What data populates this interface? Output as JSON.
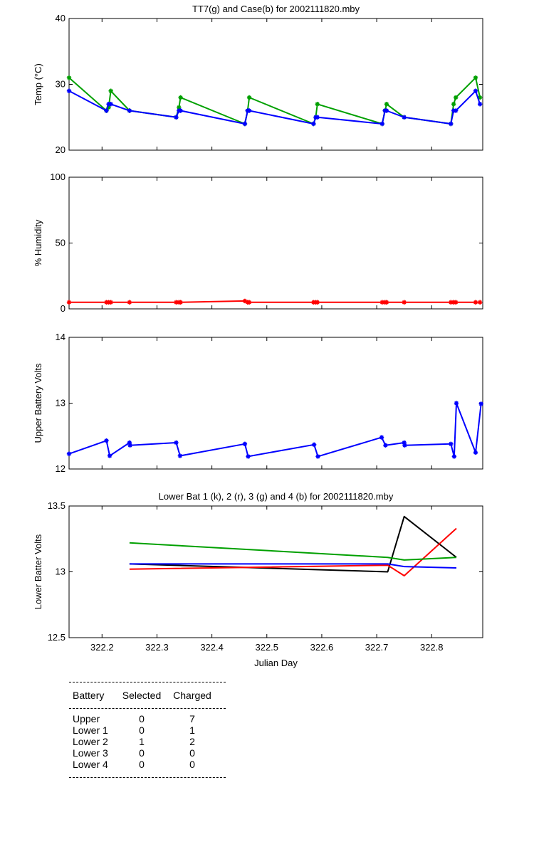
{
  "chart_data": [
    {
      "type": "line",
      "title": "TT7(g) and Case(b) for 2002111820.mby",
      "xlabel": "",
      "ylabel": "Temp  (°C)",
      "xlim": [
        322.14,
        322.893
      ],
      "ylim": [
        20,
        40
      ],
      "yticks": [
        "20",
        "30",
        "40"
      ],
      "series": [
        {
          "color": "#00a000",
          "marker": "*",
          "points": [
            [
              322.14,
              31
            ],
            [
              322.208,
              26
            ],
            [
              322.212,
              26.5
            ],
            [
              322.216,
              29
            ],
            [
              322.25,
              26
            ],
            [
              322.335,
              25
            ],
            [
              322.34,
              26.5
            ],
            [
              322.343,
              28
            ],
            [
              322.46,
              24
            ],
            [
              322.465,
              26
            ],
            [
              322.468,
              28
            ],
            [
              322.585,
              24
            ],
            [
              322.589,
              25
            ],
            [
              322.592,
              27
            ],
            [
              322.71,
              24
            ],
            [
              322.715,
              26
            ],
            [
              322.718,
              27
            ],
            [
              322.75,
              25
            ],
            [
              322.835,
              24
            ],
            [
              322.84,
              27
            ],
            [
              322.844,
              28
            ],
            [
              322.88,
              31
            ],
            [
              322.888,
              28
            ]
          ]
        },
        {
          "color": "#0000ff",
          "marker": "*",
          "points": [
            [
              322.14,
              29
            ],
            [
              322.208,
              26
            ],
            [
              322.212,
              27
            ],
            [
              322.216,
              27
            ],
            [
              322.25,
              26
            ],
            [
              322.335,
              25
            ],
            [
              322.34,
              26
            ],
            [
              322.343,
              26
            ],
            [
              322.46,
              24
            ],
            [
              322.465,
              26
            ],
            [
              322.468,
              26
            ],
            [
              322.585,
              24
            ],
            [
              322.589,
              25
            ],
            [
              322.592,
              25
            ],
            [
              322.71,
              24
            ],
            [
              322.715,
              26
            ],
            [
              322.718,
              26
            ],
            [
              322.75,
              25
            ],
            [
              322.835,
              24
            ],
            [
              322.84,
              26
            ],
            [
              322.844,
              26
            ],
            [
              322.88,
              29
            ],
            [
              322.888,
              27
            ]
          ]
        }
      ]
    },
    {
      "type": "line",
      "title": "",
      "xlabel": "",
      "ylabel": "% Humidity",
      "xlim": [
        322.14,
        322.893
      ],
      "ylim": [
        0,
        100
      ],
      "yticks": [
        "0",
        "50",
        "100"
      ],
      "series": [
        {
          "color": "#ff0000",
          "marker": "*",
          "points": [
            [
              322.14,
              5
            ],
            [
              322.208,
              5
            ],
            [
              322.212,
              5
            ],
            [
              322.216,
              5
            ],
            [
              322.25,
              5
            ],
            [
              322.335,
              5
            ],
            [
              322.34,
              5
            ],
            [
              322.343,
              5
            ],
            [
              322.46,
              6
            ],
            [
              322.465,
              5
            ],
            [
              322.468,
              5
            ],
            [
              322.585,
              5
            ],
            [
              322.589,
              5
            ],
            [
              322.592,
              5
            ],
            [
              322.71,
              5
            ],
            [
              322.715,
              5
            ],
            [
              322.718,
              5
            ],
            [
              322.75,
              5
            ],
            [
              322.835,
              5
            ],
            [
              322.84,
              5
            ],
            [
              322.844,
              5
            ],
            [
              322.88,
              5
            ],
            [
              322.888,
              5
            ]
          ]
        }
      ]
    },
    {
      "type": "line",
      "title": "",
      "xlabel": "",
      "ylabel": "Upper Battery Volts",
      "xlim": [
        322.14,
        322.893
      ],
      "ylim": [
        12,
        14
      ],
      "yticks": [
        "12",
        "13",
        "14"
      ],
      "series": [
        {
          "color": "#0000ff",
          "marker": "*",
          "points": [
            [
              322.14,
              12.23
            ],
            [
              322.208,
              12.43
            ],
            [
              322.214,
              12.2
            ],
            [
              322.25,
              12.4
            ],
            [
              322.251,
              12.36
            ],
            [
              322.335,
              12.4
            ],
            [
              322.342,
              12.2
            ],
            [
              322.46,
              12.38
            ],
            [
              322.466,
              12.19
            ],
            [
              322.586,
              12.37
            ],
            [
              322.593,
              12.19
            ],
            [
              322.709,
              12.48
            ],
            [
              322.716,
              12.36
            ],
            [
              322.75,
              12.4
            ],
            [
              322.751,
              12.36
            ],
            [
              322.835,
              12.38
            ],
            [
              322.841,
              12.19
            ],
            [
              322.845,
              13.0
            ],
            [
              322.88,
              12.25
            ],
            [
              322.89,
              12.99
            ]
          ]
        }
      ]
    },
    {
      "type": "line",
      "title": "Lower Bat 1 (k), 2 (r), 3 (g) and 4 (b) for 2002111820.mby",
      "xlabel": "Julian Day",
      "ylabel": "Lower Batter Volts",
      "xlim": [
        322.14,
        322.893
      ],
      "ylim": [
        12.5,
        13.5
      ],
      "yticks": [
        "12.5",
        "13",
        "13.5"
      ],
      "xticks": [
        "322.2",
        "322.3",
        "322.4",
        "322.5",
        "322.6",
        "322.7",
        "322.8"
      ],
      "series": [
        {
          "color": "#000000",
          "marker": "",
          "points": [
            [
              322.25,
              13.06
            ],
            [
              322.72,
              13.0
            ],
            [
              322.75,
              13.42
            ],
            [
              322.845,
              13.11
            ]
          ]
        },
        {
          "color": "#ff0000",
          "marker": "",
          "points": [
            [
              322.25,
              13.02
            ],
            [
              322.72,
              13.05
            ],
            [
              322.75,
              12.97
            ],
            [
              322.845,
              13.33
            ]
          ]
        },
        {
          "color": "#00a000",
          "marker": "",
          "points": [
            [
              322.25,
              13.22
            ],
            [
              322.72,
              13.11
            ],
            [
              322.75,
              13.09
            ],
            [
              322.845,
              13.11
            ]
          ]
        },
        {
          "color": "#0000ff",
          "marker": "",
          "points": [
            [
              322.25,
              13.06
            ],
            [
              322.72,
              13.06
            ],
            [
              322.75,
              13.04
            ],
            [
              322.845,
              13.03
            ]
          ]
        }
      ]
    }
  ],
  "table": {
    "headers": [
      "Battery",
      "Selected",
      "Charged"
    ],
    "rows": [
      [
        "Upper",
        "0",
        "7"
      ],
      [
        "Lower 1",
        "0",
        "1"
      ],
      [
        "Lower 2",
        "1",
        "2"
      ],
      [
        "Lower 3",
        "0",
        "0"
      ],
      [
        "Lower 4",
        "0",
        "0"
      ]
    ]
  }
}
